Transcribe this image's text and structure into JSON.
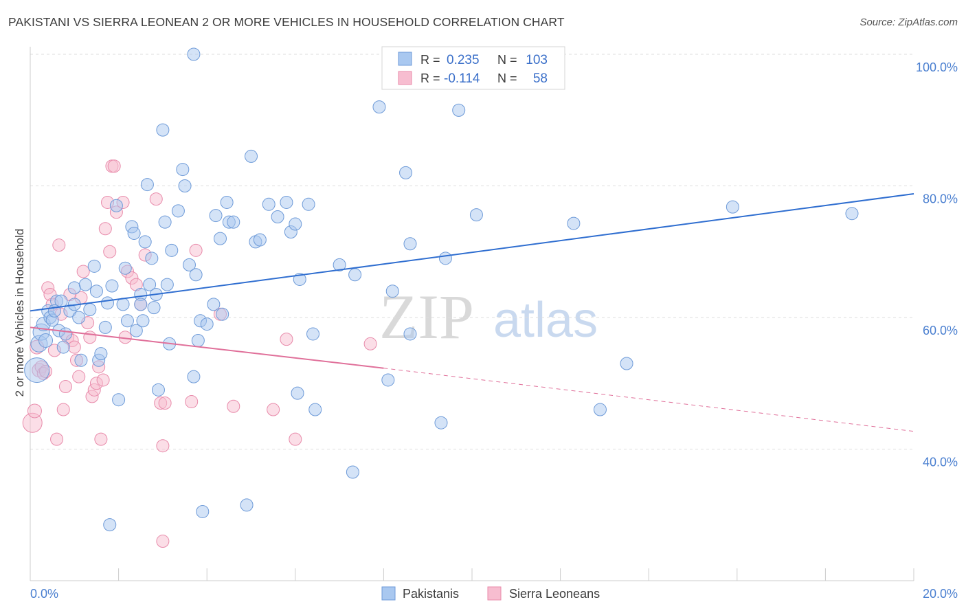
{
  "title": "PAKISTANI VS SIERRA LEONEAN 2 OR MORE VEHICLES IN HOUSEHOLD CORRELATION CHART",
  "source": "Source: ZipAtlas.com",
  "colors": {
    "blue_fill": "#a9c8f0",
    "blue_stroke": "#6d9ad8",
    "blue_line": "#2f6ed0",
    "pink_fill": "#f7bdd0",
    "pink_stroke": "#e88aaa",
    "pink_line": "#e0709a",
    "grid": "#dddddd",
    "tick_text": "#4a7fd0"
  },
  "legend": {
    "rows": [
      {
        "r_label": "R =",
        "r_value": "0.235",
        "n_label": "N =",
        "n_value": "103"
      },
      {
        "r_label": "R =",
        "r_value": "-0.114",
        "n_label": "N =",
        "n_value": "58"
      }
    ]
  },
  "bottom_legend": [
    "Pakistanis",
    "Sierra Leoneans"
  ],
  "watermark": {
    "zip": "ZIP",
    "atlas": "atlas"
  },
  "chart_data": {
    "type": "scatter",
    "title": "PAKISTANI VS SIERRA LEONEAN 2 OR MORE VEHICLES IN HOUSEHOLD CORRELATION CHART",
    "xlabel": "",
    "ylabel": "2 or more Vehicles in Household",
    "xlim": [
      0,
      20
    ],
    "ylim": [
      20,
      100
    ],
    "x_ticks": [
      "0.0%",
      "20.0%"
    ],
    "y_ticks": [
      {
        "value": 100,
        "label": "100.0%"
      },
      {
        "value": 80,
        "label": "80.0%"
      },
      {
        "value": 60,
        "label": "60.0%"
      },
      {
        "value": 40,
        "label": "40.0%"
      }
    ],
    "grid": true,
    "legend_position": "top-center",
    "series": [
      {
        "name": "Pakistanis",
        "r": 0.235,
        "n": 103,
        "trend": {
          "x0": 0,
          "y0": 61.0,
          "x1": 20,
          "y1": 78.8
        },
        "points": [
          [
            0.15,
            52.0,
            18
          ],
          [
            0.2,
            56.0,
            12
          ],
          [
            0.25,
            57.8,
            12
          ],
          [
            0.3,
            59.0,
            10
          ],
          [
            0.35,
            56.5,
            10
          ],
          [
            0.4,
            61.0,
            9
          ],
          [
            0.45,
            60.0,
            9
          ],
          [
            0.5,
            59.6,
            9
          ],
          [
            0.6,
            62.5,
            9
          ],
          [
            0.65,
            58.0,
            9
          ],
          [
            0.7,
            62.5,
            9
          ],
          [
            0.75,
            55.5,
            9
          ],
          [
            0.8,
            57.5,
            9
          ],
          [
            0.9,
            61.0,
            9
          ],
          [
            1.0,
            64.5,
            9
          ],
          [
            1.1,
            60.0,
            9
          ],
          [
            1.15,
            53.5,
            9
          ],
          [
            1.25,
            65.0,
            9
          ],
          [
            1.35,
            61.2,
            9
          ],
          [
            1.45,
            67.8,
            9
          ],
          [
            1.5,
            64.0,
            9
          ],
          [
            1.55,
            53.5,
            9
          ],
          [
            1.6,
            54.5,
            9
          ],
          [
            1.7,
            58.5,
            9
          ],
          [
            1.75,
            62.2,
            9
          ],
          [
            1.85,
            64.8,
            9
          ],
          [
            1.95,
            77.0,
            9
          ],
          [
            2.0,
            47.5,
            9
          ],
          [
            2.1,
            62.0,
            9
          ],
          [
            2.15,
            67.5,
            9
          ],
          [
            2.2,
            59.5,
            9
          ],
          [
            2.3,
            73.8,
            9
          ],
          [
            2.35,
            72.8,
            9
          ],
          [
            2.4,
            58.0,
            9
          ],
          [
            2.5,
            63.5,
            9
          ],
          [
            2.55,
            59.5,
            9
          ],
          [
            2.6,
            71.5,
            9
          ],
          [
            2.65,
            80.2,
            9
          ],
          [
            2.7,
            65.0,
            9
          ],
          [
            2.75,
            69.0,
            9
          ],
          [
            2.8,
            61.5,
            9
          ],
          [
            2.85,
            63.5,
            9
          ],
          [
            2.9,
            49.0,
            9
          ],
          [
            3.0,
            88.5,
            9
          ],
          [
            3.05,
            74.5,
            9
          ],
          [
            3.1,
            65.0,
            9
          ],
          [
            3.15,
            56.0,
            9
          ],
          [
            3.2,
            70.2,
            9
          ],
          [
            3.35,
            76.2,
            9
          ],
          [
            3.45,
            82.5,
            9
          ],
          [
            3.5,
            80.0,
            9
          ],
          [
            3.6,
            68.0,
            9
          ],
          [
            3.7,
            51.0,
            9
          ],
          [
            3.75,
            66.5,
            9
          ],
          [
            3.8,
            56.5,
            9
          ],
          [
            3.85,
            59.5,
            9
          ],
          [
            3.9,
            30.5,
            9
          ],
          [
            4.0,
            59.0,
            9
          ],
          [
            4.15,
            62.0,
            9
          ],
          [
            4.2,
            75.5,
            9
          ],
          [
            4.3,
            72.0,
            9
          ],
          [
            4.35,
            60.5,
            9
          ],
          [
            4.45,
            77.5,
            9
          ],
          [
            4.5,
            74.5,
            9
          ],
          [
            4.6,
            74.5,
            9
          ],
          [
            4.9,
            31.5,
            9
          ],
          [
            5.0,
            84.5,
            9
          ],
          [
            5.1,
            71.5,
            9
          ],
          [
            5.2,
            71.8,
            9
          ],
          [
            5.4,
            77.2,
            9
          ],
          [
            5.6,
            75.3,
            9
          ],
          [
            5.8,
            77.5,
            9
          ],
          [
            5.9,
            73.0,
            9
          ],
          [
            6.0,
            74.2,
            9
          ],
          [
            6.05,
            48.5,
            9
          ],
          [
            6.1,
            65.8,
            9
          ],
          [
            6.3,
            77.2,
            9
          ],
          [
            6.4,
            57.5,
            9
          ],
          [
            6.45,
            46.0,
            9
          ],
          [
            7.0,
            68.0,
            9
          ],
          [
            7.3,
            36.5,
            9
          ],
          [
            7.35,
            66.5,
            9
          ],
          [
            7.9,
            92.0,
            9
          ],
          [
            8.1,
            50.5,
            9
          ],
          [
            8.2,
            64.0,
            9
          ],
          [
            8.5,
            82.0,
            9
          ],
          [
            8.6,
            71.2,
            9
          ],
          [
            8.6,
            57.5,
            9
          ],
          [
            9.3,
            44.0,
            9
          ],
          [
            9.4,
            69.0,
            9
          ],
          [
            9.7,
            91.5,
            9
          ],
          [
            10.1,
            75.6,
            9
          ],
          [
            11.4,
            100.0,
            9
          ],
          [
            12.3,
            74.3,
            9
          ],
          [
            12.9,
            46.0,
            9
          ],
          [
            13.5,
            53.0,
            9
          ],
          [
            15.9,
            76.8,
            9
          ],
          [
            18.6,
            75.8,
            9
          ],
          [
            1.8,
            28.5,
            9
          ],
          [
            3.7,
            100.0,
            9
          ],
          [
            2.5,
            62.0,
            9
          ],
          [
            1.0,
            62.0,
            9
          ],
          [
            0.55,
            61.0,
            9
          ]
        ]
      },
      {
        "name": "Sierra Leoneans",
        "r": -0.114,
        "n": 58,
        "trend": {
          "x0": 0,
          "y0": 58.5,
          "x1": 8.0,
          "y1": 52.3
        },
        "trend_dashed": {
          "x0": 8.0,
          "y0": 52.3,
          "x1": 20,
          "y1": 42.7
        },
        "points": [
          [
            0.05,
            44.0,
            14
          ],
          [
            0.1,
            45.8,
            10
          ],
          [
            0.15,
            55.5,
            10
          ],
          [
            0.2,
            52.0,
            10
          ],
          [
            0.25,
            52.5,
            9
          ],
          [
            0.3,
            51.5,
            9
          ],
          [
            0.35,
            51.8,
            9
          ],
          [
            0.4,
            64.5,
            9
          ],
          [
            0.45,
            63.5,
            9
          ],
          [
            0.5,
            62.0,
            9
          ],
          [
            0.55,
            55.0,
            9
          ],
          [
            0.6,
            41.5,
            9
          ],
          [
            0.65,
            71.0,
            9
          ],
          [
            0.7,
            60.5,
            9
          ],
          [
            0.75,
            46.0,
            9
          ],
          [
            0.8,
            49.5,
            9
          ],
          [
            0.85,
            57.0,
            9
          ],
          [
            0.9,
            63.5,
            9
          ],
          [
            0.95,
            56.5,
            9
          ],
          [
            1.0,
            55.5,
            9
          ],
          [
            1.05,
            53.5,
            9
          ],
          [
            1.1,
            51.0,
            9
          ],
          [
            1.15,
            63.0,
            9
          ],
          [
            1.2,
            67.0,
            9
          ],
          [
            1.3,
            59.2,
            9
          ],
          [
            1.35,
            57.0,
            9
          ],
          [
            1.4,
            48.0,
            9
          ],
          [
            1.45,
            49.0,
            9
          ],
          [
            1.5,
            50.0,
            9
          ],
          [
            1.55,
            52.5,
            9
          ],
          [
            1.6,
            41.5,
            9
          ],
          [
            1.65,
            50.5,
            9
          ],
          [
            1.7,
            73.5,
            9
          ],
          [
            1.75,
            77.5,
            9
          ],
          [
            1.8,
            70.0,
            9
          ],
          [
            1.85,
            83.0,
            9
          ],
          [
            1.9,
            83.0,
            9
          ],
          [
            1.95,
            76.0,
            9
          ],
          [
            2.1,
            77.5,
            9
          ],
          [
            2.15,
            57.0,
            9
          ],
          [
            2.2,
            67.0,
            9
          ],
          [
            2.3,
            66.0,
            9
          ],
          [
            2.4,
            65.0,
            9
          ],
          [
            2.5,
            62.0,
            9
          ],
          [
            2.6,
            69.5,
            9
          ],
          [
            2.85,
            78.0,
            9
          ],
          [
            2.95,
            47.0,
            9
          ],
          [
            3.0,
            40.5,
            9
          ],
          [
            3.05,
            47.0,
            9
          ],
          [
            3.65,
            47.2,
            9
          ],
          [
            3.75,
            70.2,
            9
          ],
          [
            4.3,
            60.5,
            9
          ],
          [
            4.6,
            46.5,
            9
          ],
          [
            5.5,
            46.0,
            9
          ],
          [
            5.8,
            56.7,
            9
          ],
          [
            6.0,
            41.5,
            9
          ],
          [
            7.7,
            56.0,
            9
          ],
          [
            3.0,
            26.0,
            9
          ]
        ]
      }
    ]
  }
}
